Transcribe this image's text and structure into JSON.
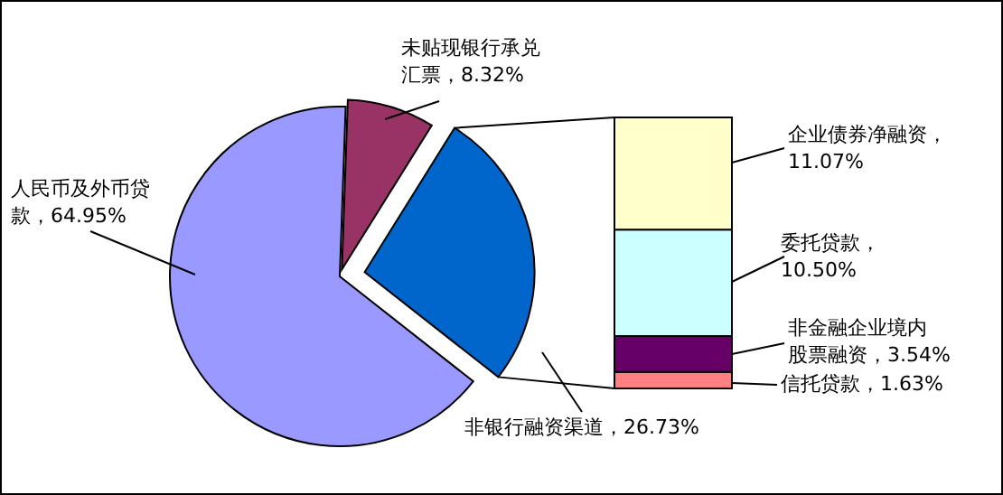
{
  "chart_data": [
    {
      "type": "pie",
      "categories": [
        "未贴现银行承兑汇票",
        "非银行融资渠道",
        "人民币及外币贷款"
      ],
      "values": [
        8.32,
        26.73,
        64.95
      ],
      "value_labels": [
        "8.32%",
        "26.73%",
        "64.95%"
      ],
      "colors": [
        "#993366",
        "#0066cc",
        "#9999ff"
      ]
    },
    {
      "type": "bar",
      "stacked": true,
      "categories": [
        null
      ],
      "series": [
        {
          "name": "信托贷款，",
          "color": "#ff8080",
          "values": [
            1.63
          ],
          "value_labels": [
            "1.63%"
          ]
        },
        {
          "name": "非金融企业境内股票融资，",
          "color": "#660066",
          "values": [
            3.54
          ],
          "value_labels": [
            "3.54%"
          ]
        },
        {
          "name": "委托贷款，",
          "color": "#ccffff",
          "values": [
            10.5
          ],
          "value_labels": [
            "10.50%"
          ]
        },
        {
          "name": "企业债券净融资，",
          "color": "#ffffcc",
          "values": [
            11.07
          ],
          "value_labels": [
            "11.07%"
          ]
        }
      ]
    }
  ]
}
